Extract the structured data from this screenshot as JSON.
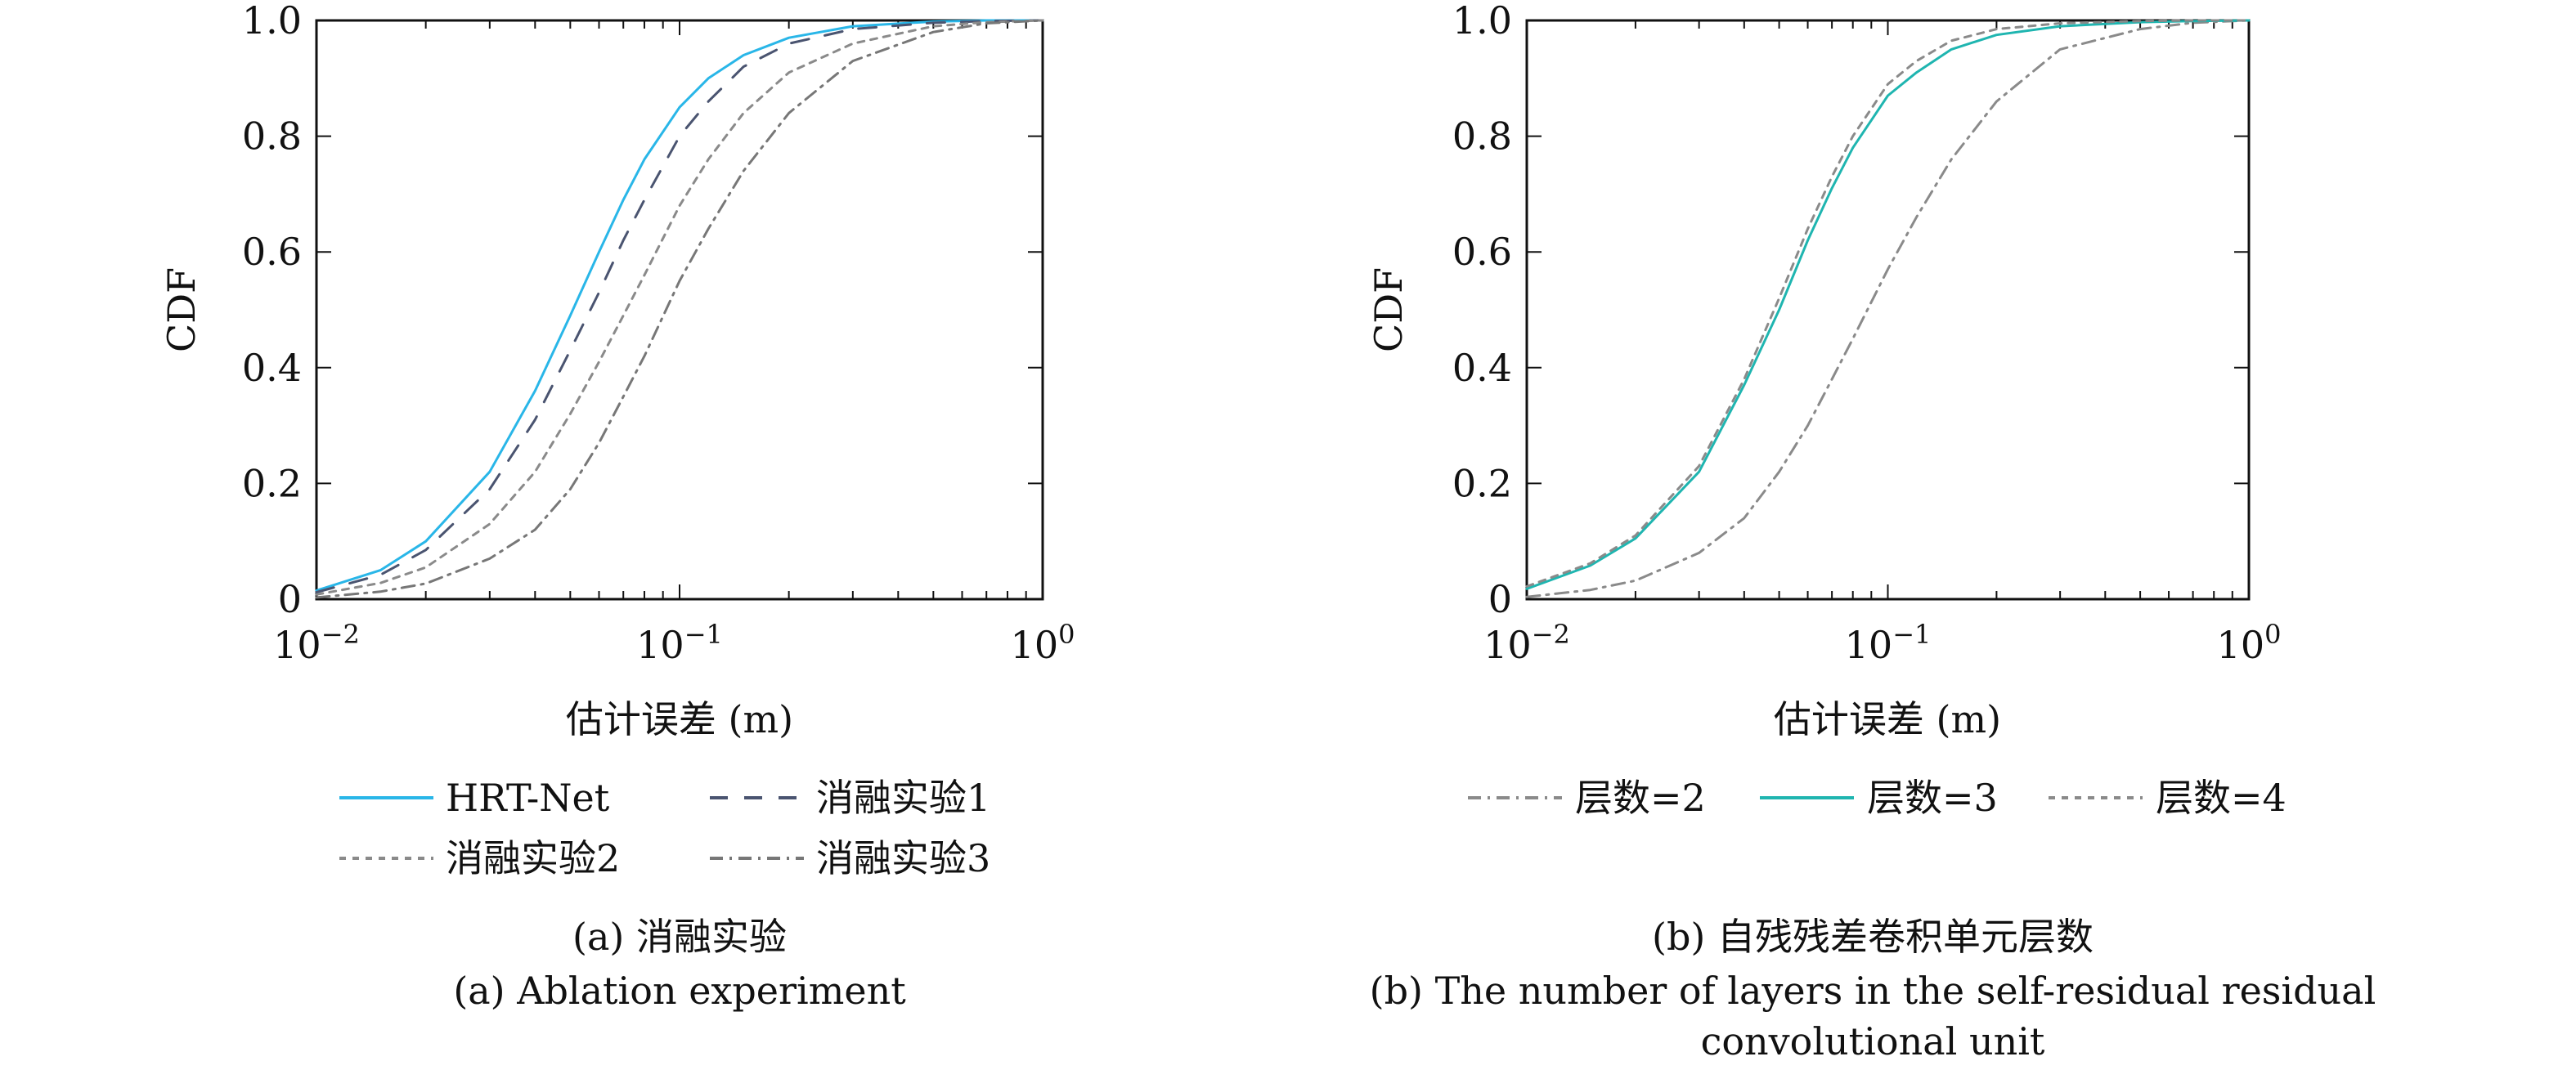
{
  "chart_data": [
    {
      "type": "line",
      "panel": "a",
      "xlabel": "估计误差 (m)",
      "ylabel": "CDF",
      "xscale": "log",
      "xlim": [
        0.01,
        1
      ],
      "ylim": [
        0,
        1
      ],
      "xticks": [
        {
          "value": 0.01,
          "base": "10",
          "exp": "−2"
        },
        {
          "value": 0.1,
          "base": "10",
          "exp": "−1"
        },
        {
          "value": 1,
          "base": "10",
          "exp": "0"
        }
      ],
      "yticks": [
        {
          "value": 0,
          "label": "0"
        },
        {
          "value": 0.2,
          "label": "0.2"
        },
        {
          "value": 0.4,
          "label": "0.4"
        },
        {
          "value": 0.6,
          "label": "0.6"
        },
        {
          "value": 0.8,
          "label": "0.8"
        },
        {
          "value": 1.0,
          "label": "1.0"
        }
      ],
      "grid": false,
      "legend_position": "bottom",
      "caption_cn": "(a) 消融实验",
      "caption_en": "(a) Ablation experiment",
      "x": [
        0.01,
        0.015,
        0.02,
        0.03,
        0.04,
        0.05,
        0.06,
        0.07,
        0.08,
        0.1,
        0.12,
        0.15,
        0.2,
        0.3,
        0.5,
        0.7,
        1.0
      ],
      "series": [
        {
          "name": "HRT-Net",
          "color": "#29b6e8",
          "dash": "",
          "values": [
            0.015,
            0.05,
            0.1,
            0.22,
            0.36,
            0.49,
            0.6,
            0.69,
            0.76,
            0.85,
            0.9,
            0.94,
            0.97,
            0.99,
            0.998,
            1.0,
            1.0
          ]
        },
        {
          "name": "消融实验1",
          "color": "#4a5470",
          "dash": "22,20",
          "values": [
            0.012,
            0.042,
            0.085,
            0.19,
            0.31,
            0.43,
            0.53,
            0.62,
            0.69,
            0.8,
            0.86,
            0.92,
            0.96,
            0.985,
            0.996,
            0.999,
            1.0
          ]
        },
        {
          "name": "消融实验2",
          "color": "#8a8a8a",
          "dash": "8,8",
          "values": [
            0.008,
            0.028,
            0.055,
            0.13,
            0.22,
            0.32,
            0.41,
            0.49,
            0.56,
            0.68,
            0.76,
            0.84,
            0.91,
            0.96,
            0.99,
            0.997,
            1.0
          ]
        },
        {
          "name": "消融实验3",
          "color": "#777777",
          "dash": "16,8,3,8",
          "values": [
            0.003,
            0.013,
            0.027,
            0.07,
            0.12,
            0.19,
            0.27,
            0.35,
            0.42,
            0.55,
            0.64,
            0.74,
            0.84,
            0.93,
            0.98,
            0.995,
            1.0
          ]
        }
      ]
    },
    {
      "type": "line",
      "panel": "b",
      "xlabel": "估计误差 (m)",
      "ylabel": "CDF",
      "xscale": "log",
      "xlim": [
        0.01,
        1
      ],
      "ylim": [
        0,
        1
      ],
      "xticks": [
        {
          "value": 0.01,
          "base": "10",
          "exp": "−2"
        },
        {
          "value": 0.1,
          "base": "10",
          "exp": "−1"
        },
        {
          "value": 1,
          "base": "10",
          "exp": "0"
        }
      ],
      "yticks": [
        {
          "value": 0,
          "label": "0"
        },
        {
          "value": 0.2,
          "label": "0.2"
        },
        {
          "value": 0.4,
          "label": "0.4"
        },
        {
          "value": 0.6,
          "label": "0.6"
        },
        {
          "value": 0.8,
          "label": "0.8"
        },
        {
          "value": 1.0,
          "label": "1.0"
        }
      ],
      "grid": false,
      "legend_position": "bottom",
      "caption_cn": "(b) 自残残差卷积单元层数",
      "caption_en_line1": "(b) The number of layers in the self-residual residual",
      "caption_en_line2": "convolutional unit",
      "x": [
        0.01,
        0.015,
        0.02,
        0.03,
        0.04,
        0.05,
        0.06,
        0.07,
        0.08,
        0.1,
        0.12,
        0.15,
        0.2,
        0.3,
        0.5,
        0.7,
        1.0
      ],
      "series": [
        {
          "name": "层数=2",
          "color": "#8a8a8a",
          "dash": "16,8,3,8",
          "values": [
            0.004,
            0.016,
            0.032,
            0.08,
            0.14,
            0.22,
            0.3,
            0.38,
            0.45,
            0.57,
            0.66,
            0.76,
            0.86,
            0.95,
            0.985,
            0.996,
            1.0
          ]
        },
        {
          "name": "层数=3",
          "color": "#1fb5b0",
          "dash": "",
          "values": [
            0.018,
            0.058,
            0.105,
            0.22,
            0.37,
            0.5,
            0.62,
            0.71,
            0.78,
            0.87,
            0.91,
            0.95,
            0.975,
            0.99,
            0.997,
            0.999,
            1.0
          ]
        },
        {
          "name": "层数=4",
          "color": "#8a8a8a",
          "dash": "8,8",
          "values": [
            0.022,
            0.062,
            0.11,
            0.23,
            0.38,
            0.52,
            0.64,
            0.73,
            0.8,
            0.89,
            0.93,
            0.965,
            0.985,
            0.995,
            0.999,
            1.0,
            1.0
          ]
        }
      ]
    }
  ]
}
